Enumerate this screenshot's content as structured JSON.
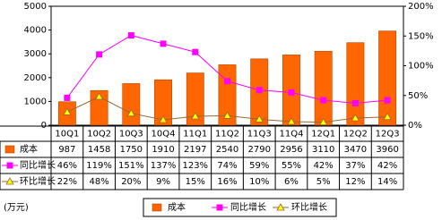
{
  "chart_data": {
    "type": "bar-line-table",
    "unit": "(万元)",
    "categories": [
      "10Q1",
      "10Q2",
      "10Q3",
      "10Q4",
      "11Q1",
      "11Q2",
      "11Q3",
      "11Q4",
      "12Q1",
      "12Q2",
      "12Q3"
    ],
    "ylim": [
      0,
      5000
    ],
    "yticks": [
      0,
      1000,
      2000,
      3000,
      4000,
      5000
    ],
    "y2lim": [
      0,
      200
    ],
    "y2ticks": [
      {
        "value": 0,
        "label": "0%"
      },
      {
        "value": 50,
        "label": "50%"
      },
      {
        "value": 100,
        "label": "100%"
      },
      {
        "value": 150,
        "label": "150%"
      },
      {
        "value": 200,
        "label": "200%"
      }
    ],
    "grid": false,
    "series": [
      {
        "name": "成本",
        "kind": "bar",
        "color": "#ff6600",
        "values": [
          987,
          1458,
          1750,
          1910,
          2197,
          2540,
          2790,
          2956,
          3110,
          3470,
          3960
        ]
      },
      {
        "name": "同比增长",
        "kind": "line",
        "marker": "square",
        "axis": "y2",
        "color": "#ff00ff",
        "marker_color": "#ff00ff",
        "values": [
          46,
          119,
          151,
          137,
          123,
          74,
          59,
          55,
          42,
          37,
          42
        ],
        "value_labels": [
          "46%",
          "119%",
          "151%",
          "137%",
          "123%",
          "74%",
          "59%",
          "55%",
          "42%",
          "37%",
          "42%"
        ]
      },
      {
        "name": "环比增长",
        "kind": "line",
        "marker": "triangle",
        "axis": "y2",
        "color": "#996633",
        "marker_color": "#ffff00",
        "values": [
          22,
          48,
          20,
          9,
          15,
          16,
          10,
          6,
          5,
          12,
          14
        ],
        "value_labels": [
          "22%",
          "48%",
          "20%",
          "9%",
          "15%",
          "16%",
          "10%",
          "6%",
          "5%",
          "12%",
          "14%"
        ]
      }
    ]
  }
}
